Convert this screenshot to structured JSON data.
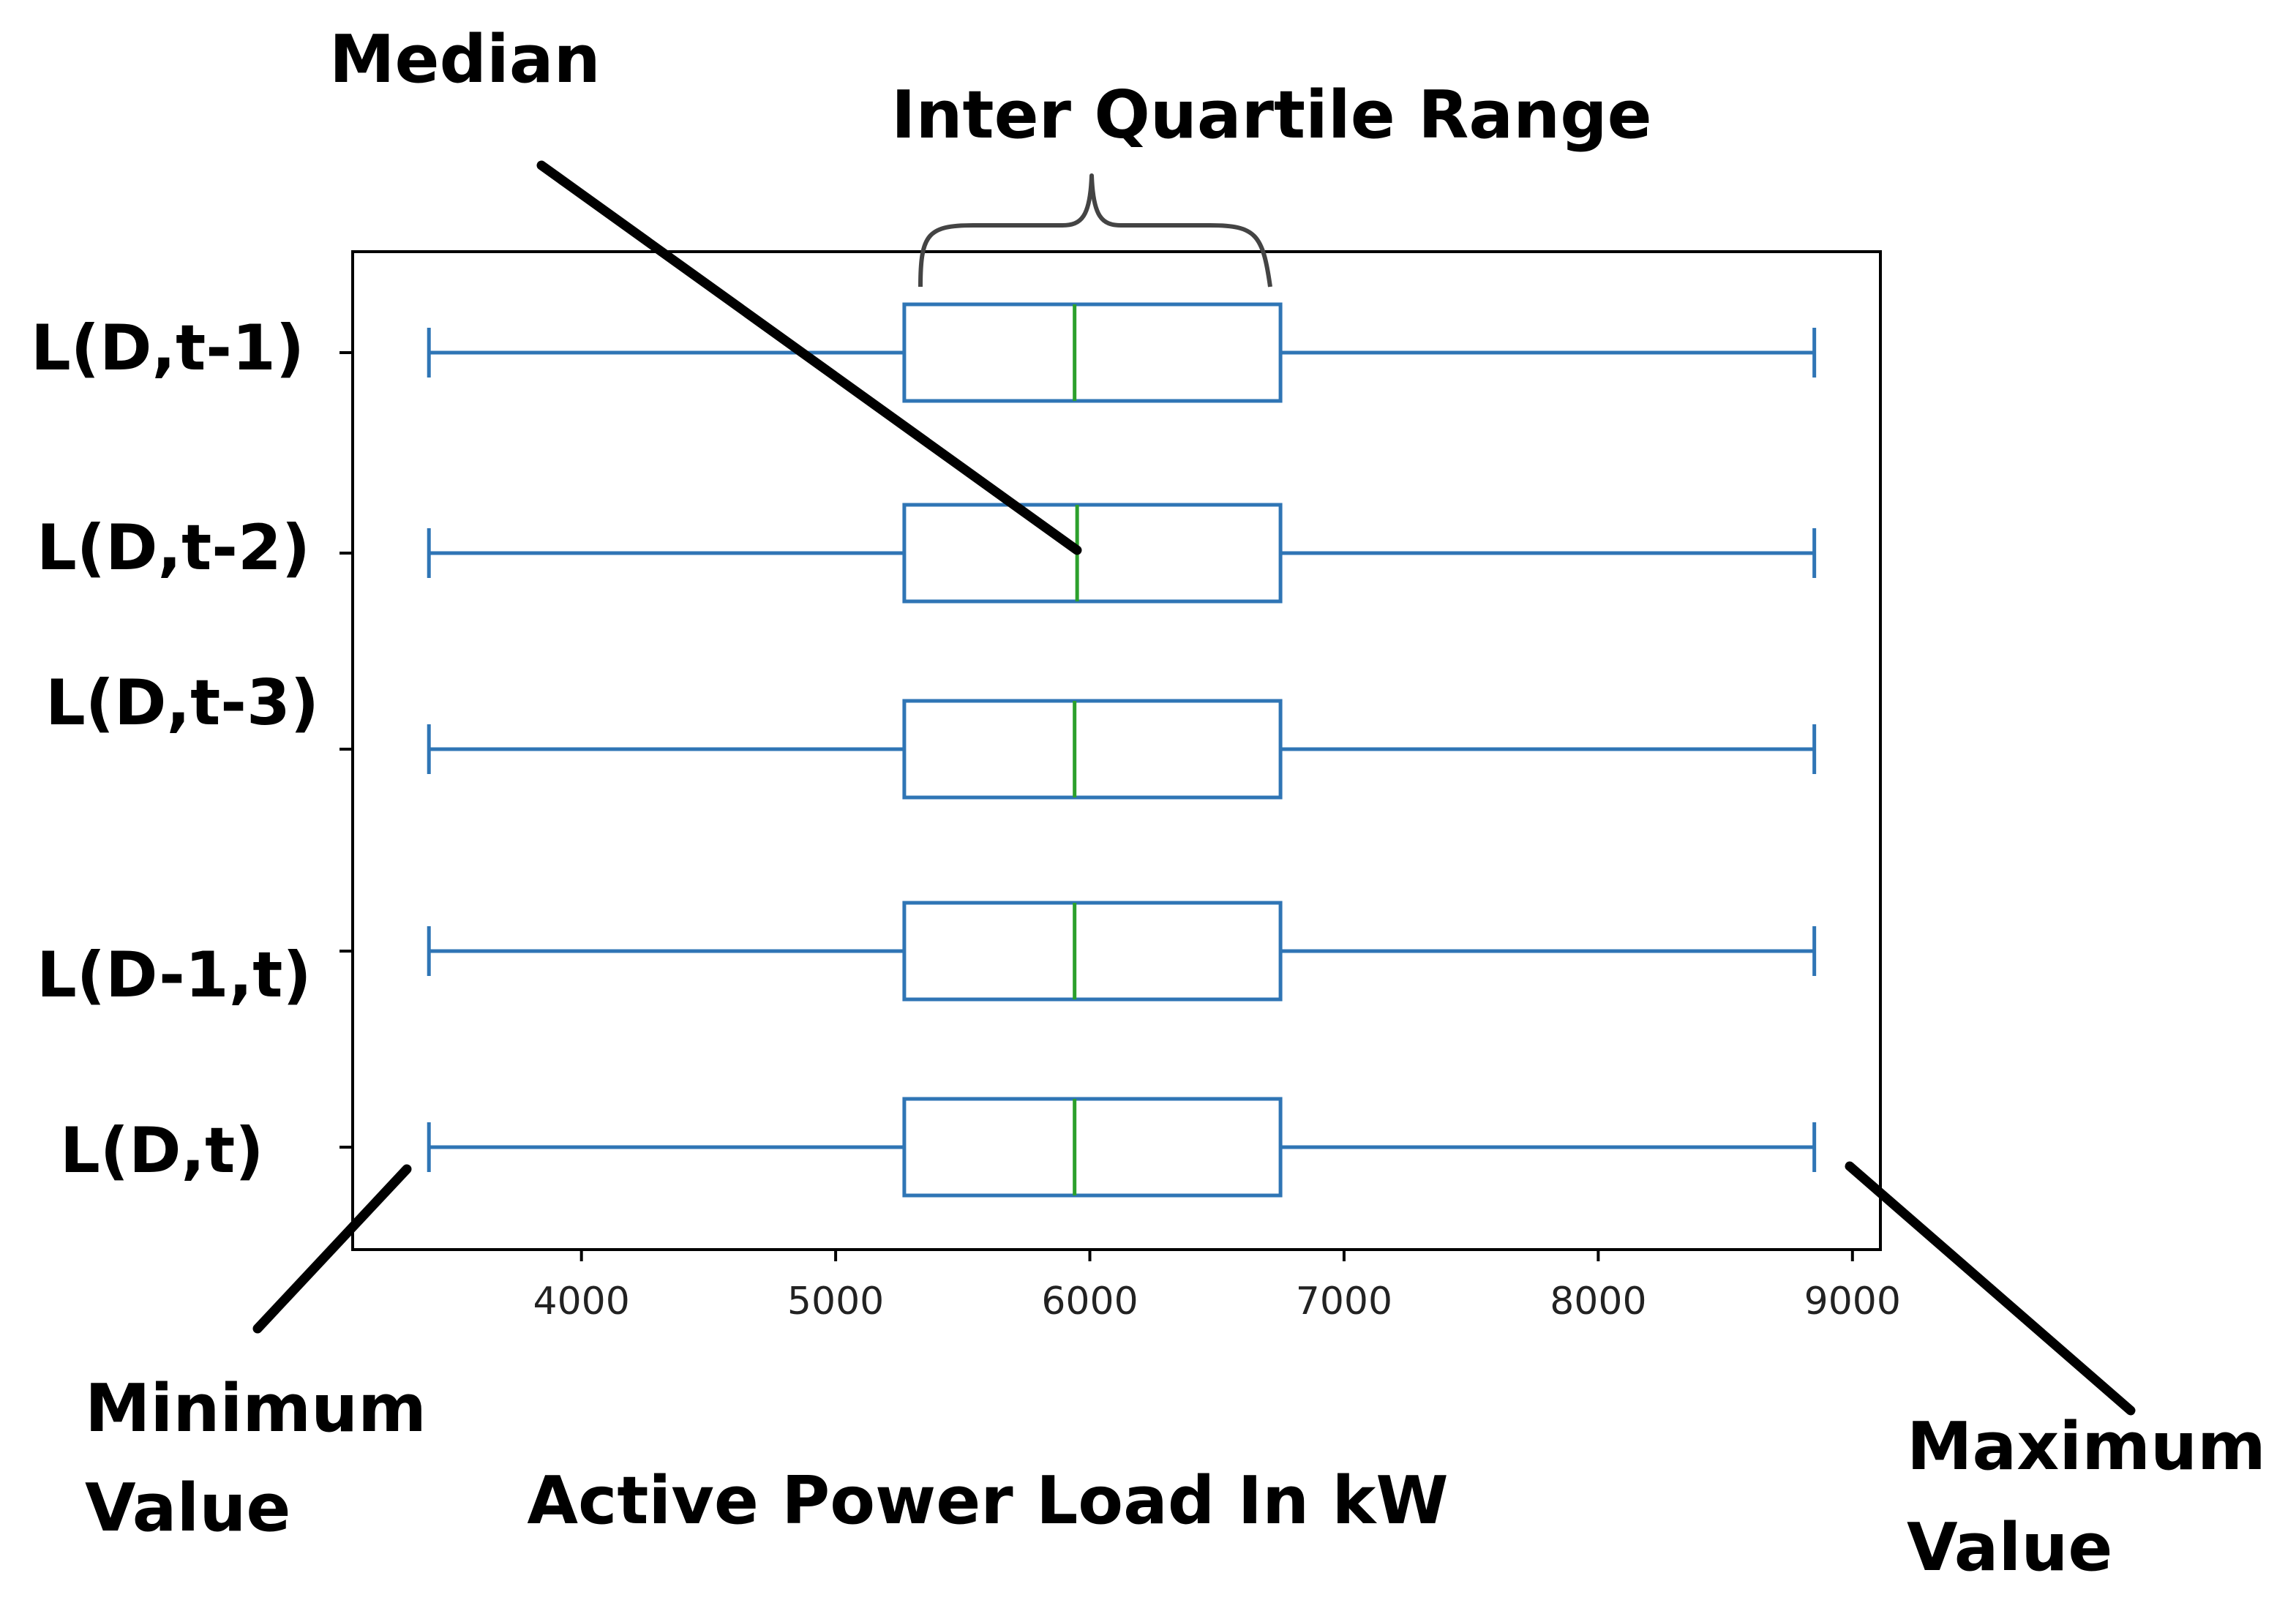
{
  "chart_data": {
    "type": "boxplot",
    "orientation": "horizontal",
    "xlabel": "Active Power Load In kW",
    "xlim": [
      3100,
      9110
    ],
    "xticks": [
      4000,
      5000,
      6000,
      7000,
      8000,
      9000
    ],
    "categories": [
      "L(D,t-1)",
      "L(D,t-2)",
      "L(D,t-3)",
      "L(D-1,t)",
      "L(D,t)"
    ],
    "boxes": [
      {
        "label": "L(D,t-1)",
        "min": 3400,
        "q1": 5270,
        "median": 5940,
        "q3": 6750,
        "max": 8850
      },
      {
        "label": "L(D,t-2)",
        "min": 3400,
        "q1": 5270,
        "median": 5950,
        "q3": 6750,
        "max": 8850
      },
      {
        "label": "L(D,t-3)",
        "min": 3400,
        "q1": 5270,
        "median": 5940,
        "q3": 6750,
        "max": 8850
      },
      {
        "label": "L(D-1,t)",
        "min": 3400,
        "q1": 5270,
        "median": 5940,
        "q3": 6750,
        "max": 8850
      },
      {
        "label": "L(D,t)",
        "min": 3400,
        "q1": 5270,
        "median": 5940,
        "q3": 6750,
        "max": 8850
      }
    ],
    "annotations": {
      "median": "Median",
      "iqr": "Inter Quartile Range",
      "minimum": [
        "Minimum",
        "Value"
      ],
      "maximum": [
        "Maximum",
        "Value"
      ]
    },
    "grid": false,
    "legend": "none"
  },
  "colors": {
    "box": "#2f75b5",
    "median": "#2ca02c",
    "frame": "#000000",
    "annotation": "#000000"
  }
}
